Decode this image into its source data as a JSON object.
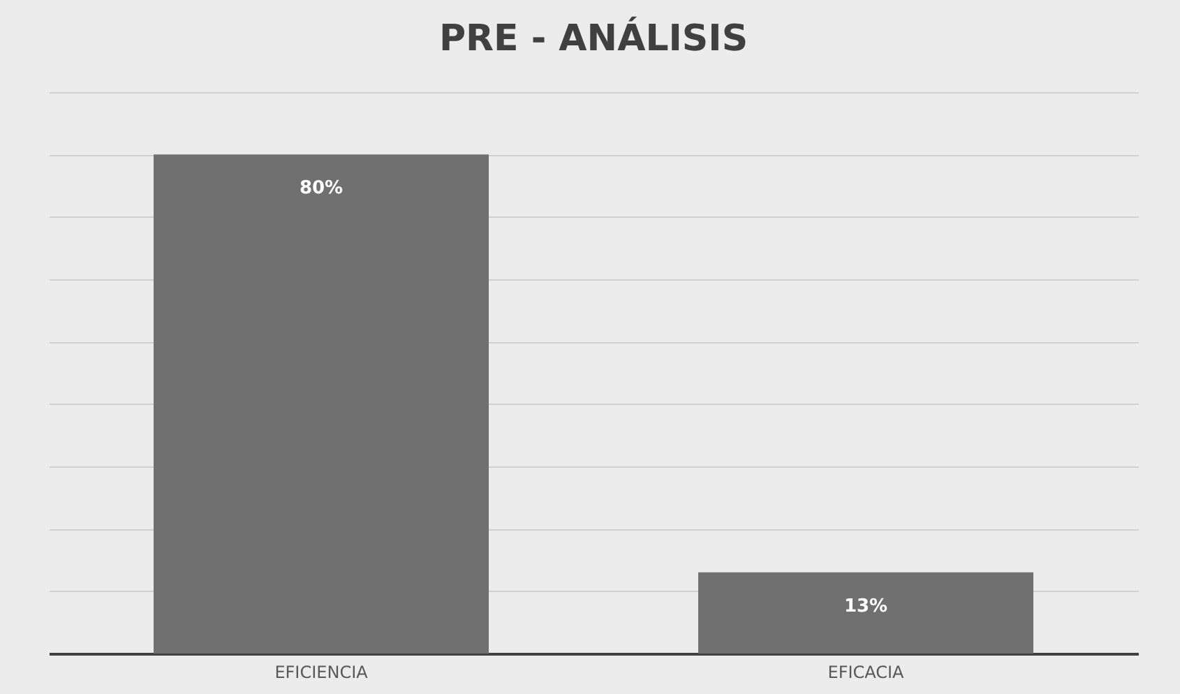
{
  "chart_data": {
    "type": "bar",
    "title": "PRE - ANÁLISIS",
    "categories": [
      "EFICIENCIA",
      "EFICACIA"
    ],
    "values": [
      80,
      13
    ],
    "value_labels": [
      "80%",
      "13%"
    ],
    "color": "#707070",
    "ylim": [
      0,
      90
    ],
    "yticks": [
      0,
      10,
      20,
      30,
      40,
      50,
      60,
      70,
      80,
      90
    ],
    "grid": "y",
    "tick_labels": "x"
  }
}
